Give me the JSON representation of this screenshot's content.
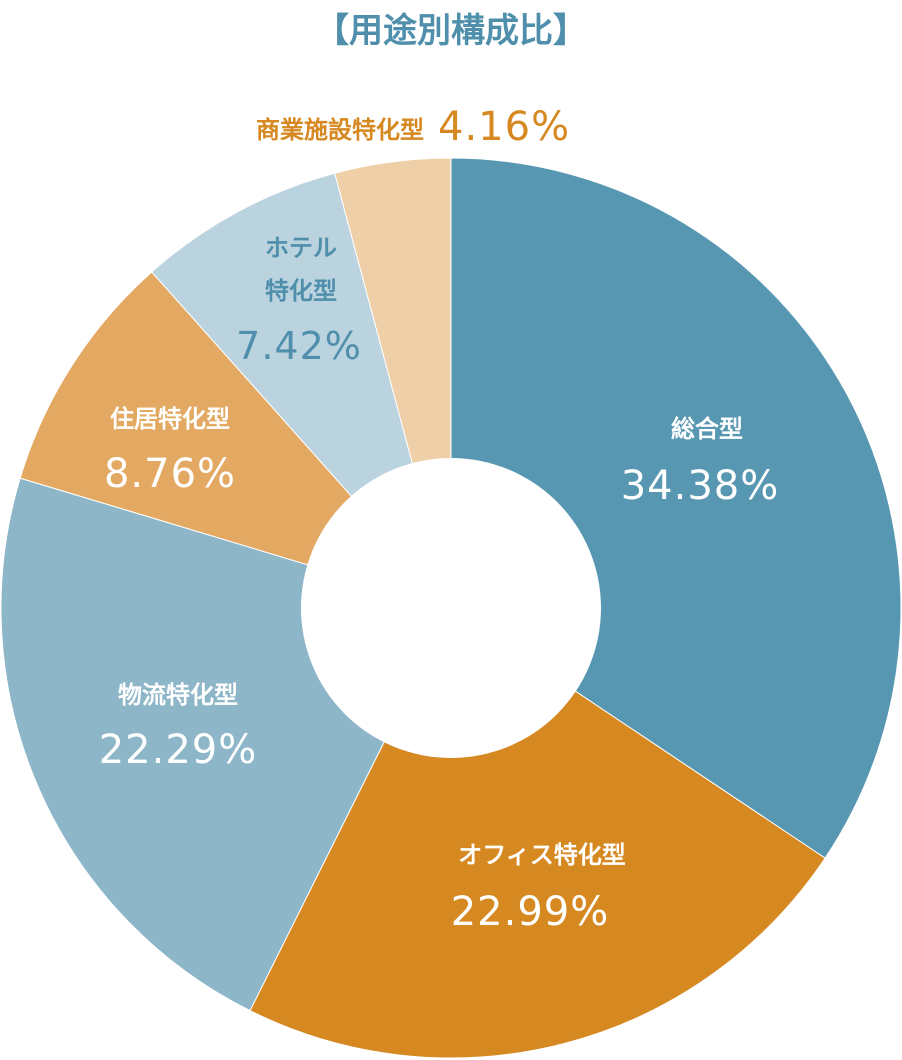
{
  "chart_data": {
    "type": "pie",
    "title": "【用途別構成比】",
    "slices": [
      {
        "label": "総合型",
        "value": 34.38,
        "display": "34.38%",
        "color": "#5797b1"
      },
      {
        "label": "オフィス特化型",
        "value": 22.99,
        "display": "22.99%",
        "color": "#d68821"
      },
      {
        "label": "物流特化型",
        "value": 22.29,
        "display": "22.29%",
        "color": "#8db6c9"
      },
      {
        "label": "住居特化型",
        "value": 8.76,
        "display": "8.76%",
        "color": "#e3a962"
      },
      {
        "label": "ホテル特化型",
        "label_lines": [
          "ホテル",
          "特化型"
        ],
        "value": 7.42,
        "display": "7.42%",
        "color": "#bad3de"
      },
      {
        "label": "商業施設特化型",
        "value": 4.16,
        "display": "4.16%",
        "color": "#efcfa7"
      }
    ]
  },
  "colors": {
    "title": "#4f8fab",
    "label_on_dark": "#ffffff",
    "label_hotel": "#4f8fab",
    "label_commercial": "#d68821"
  }
}
